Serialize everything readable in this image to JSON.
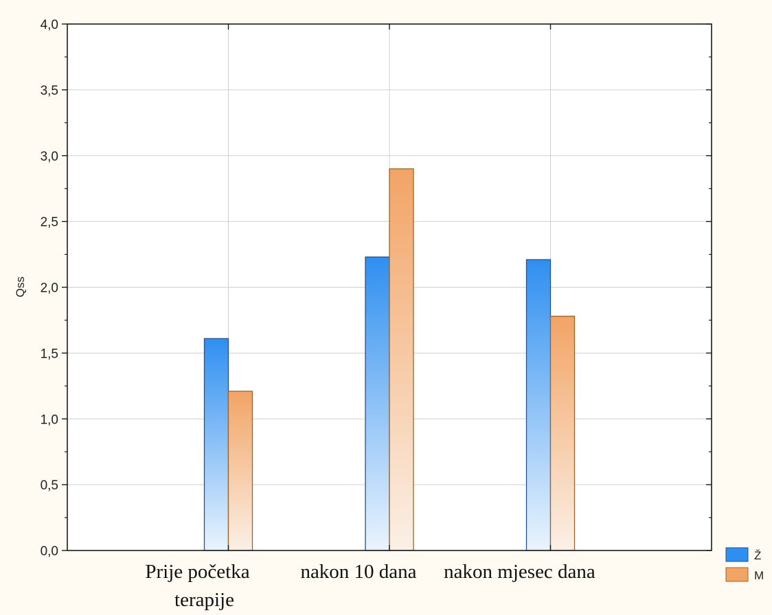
{
  "chart_data": {
    "type": "bar",
    "categories": [
      [
        "Prije početka",
        "terapije"
      ],
      [
        "nakon 10 dana"
      ],
      [
        "nakon mjesec dana"
      ]
    ],
    "series": [
      {
        "name": "Ž",
        "values": [
          1.61,
          2.23,
          2.21
        ],
        "color": "#2f8ff0",
        "fade": "#eaf4fd",
        "stroke": "#2b4f86"
      },
      {
        "name": "M",
        "values": [
          1.21,
          2.9,
          1.78
        ],
        "color": "#f2a465",
        "fade": "#fbf0e6",
        "stroke": "#9a6530"
      }
    ],
    "ylabel": "Qss",
    "ylim": [
      0,
      4
    ],
    "yticks": [
      "0,0",
      "0,5",
      "1,0",
      "1,5",
      "2,0",
      "2,5",
      "3,0",
      "3,5",
      "4,0"
    ],
    "grid": true,
    "legend_position": "bottom-right"
  }
}
